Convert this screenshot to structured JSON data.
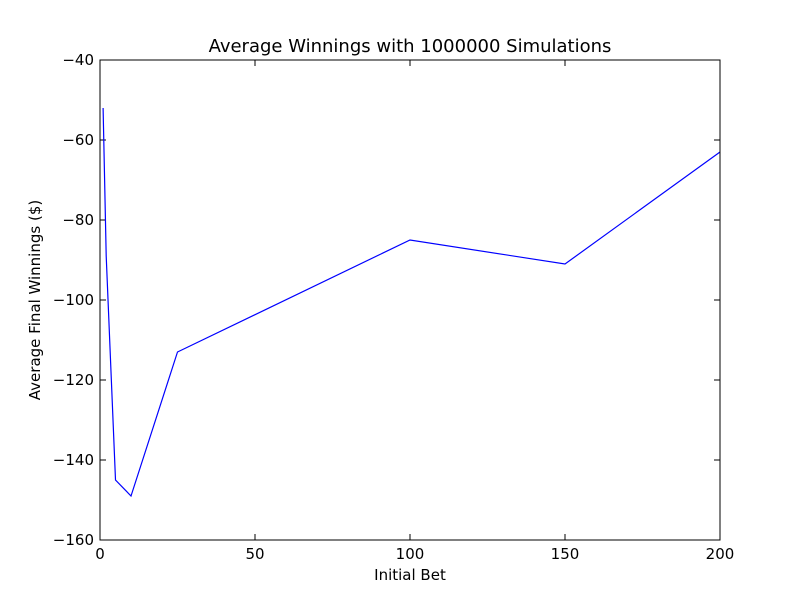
{
  "chart_data": {
    "type": "line",
    "title": "Average Winnings with 1000000 Simulations",
    "xlabel": "Initial Bet",
    "ylabel": "Average Final Winnings ($)",
    "xlim": [
      0,
      200
    ],
    "ylim": [
      -160,
      -40
    ],
    "xticks": [
      0,
      50,
      100,
      150,
      200
    ],
    "yticks": [
      -160,
      -140,
      -120,
      -100,
      -80,
      -60,
      -40
    ],
    "xtick_labels": [
      "0",
      "50",
      "100",
      "150",
      "200"
    ],
    "ytick_labels": [
      "−160",
      "−140",
      "−120",
      "−100",
      "−80",
      "−60",
      "−40"
    ],
    "grid": false,
    "legend": "none",
    "series": [
      {
        "color": "#0000ff",
        "x": [
          1,
          2,
          5,
          10,
          25,
          100,
          150,
          200
        ],
        "y": [
          -52,
          -89,
          -145,
          -149,
          -113,
          -85,
          -91,
          -63
        ]
      }
    ]
  }
}
